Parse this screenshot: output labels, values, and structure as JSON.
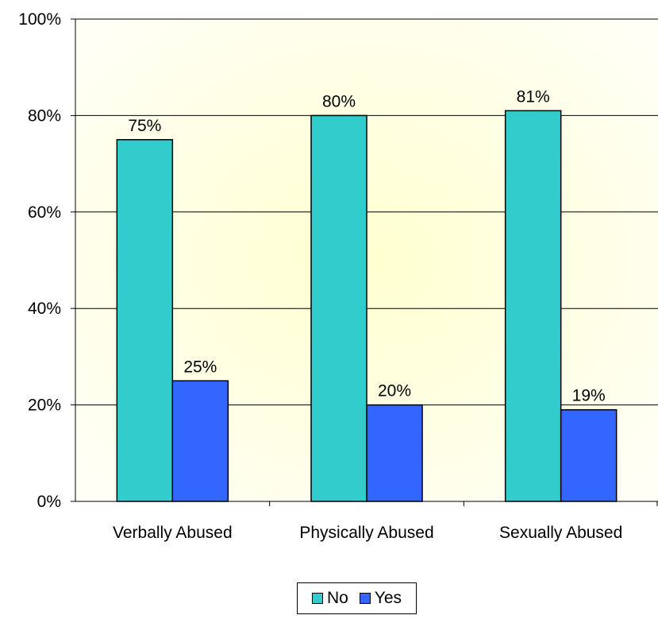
{
  "chart_data": {
    "type": "bar",
    "categories": [
      "Verbally Abused",
      "Physically Abused",
      "Sexually Abused"
    ],
    "series": [
      {
        "name": "No",
        "values": [
          75,
          80,
          81
        ],
        "color": "#33CCCC",
        "labels": [
          "75%",
          "80%",
          "81%"
        ]
      },
      {
        "name": "Yes",
        "values": [
          25,
          20,
          19
        ],
        "color": "#3366FF",
        "labels": [
          "25%",
          "20%",
          "19%"
        ]
      }
    ],
    "ylim": [
      0,
      100
    ],
    "yticks": [
      0,
      20,
      40,
      60,
      80,
      100
    ],
    "ytick_labels": [
      "0%",
      "20%",
      "40%",
      "60%",
      "80%",
      "100%"
    ],
    "grid": true,
    "legend_position": "bottom",
    "plot_background": "#FFFFE0"
  }
}
